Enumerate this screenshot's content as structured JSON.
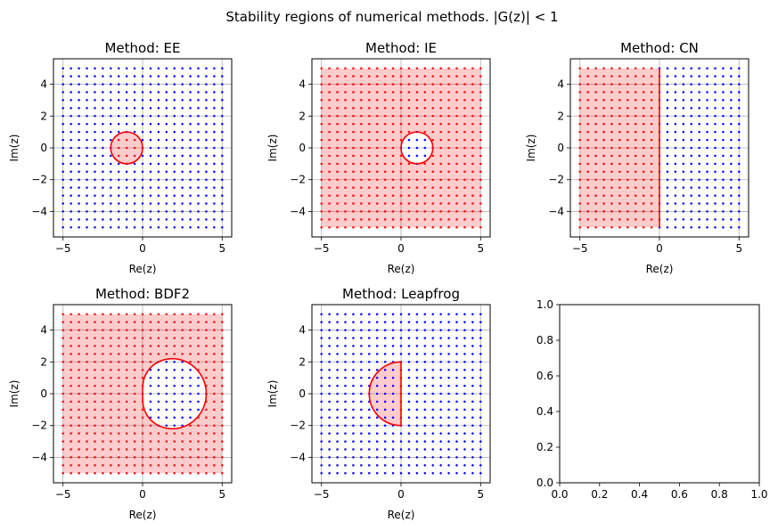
{
  "figure": {
    "suptitle": "Stability regions of numerical methods. |G(z)| < 1"
  },
  "colors": {
    "stable": "#ff0000",
    "unstable": "#0000ff",
    "fill": "#ff0000",
    "boundary": "#ff0000",
    "grid": "#b0b0b0"
  },
  "chart_data": [
    {
      "type": "scatter",
      "title": "Method: EE",
      "xlabel": "Re(z)",
      "ylabel": "Im(z)",
      "xlim": [
        -5.6,
        5.6
      ],
      "ylim": [
        -5.6,
        5.6
      ],
      "xticks": [
        -5,
        0,
        5
      ],
      "yticks": [
        -4,
        -2,
        0,
        2,
        4
      ],
      "grid": true,
      "lattice": {
        "min": -5.0,
        "max": 5.0,
        "step": 0.5
      },
      "method": "EE",
      "region": "|1+z| < 1"
    },
    {
      "type": "scatter",
      "title": "Method: IE",
      "xlabel": "Re(z)",
      "ylabel": "Im(z)",
      "xlim": [
        -5.6,
        5.6
      ],
      "ylim": [
        -5.6,
        5.6
      ],
      "xticks": [
        -5,
        0,
        5
      ],
      "yticks": [
        -4,
        -2,
        0,
        2,
        4
      ],
      "grid": true,
      "lattice": {
        "min": -5.0,
        "max": 5.0,
        "step": 0.5
      },
      "method": "IE",
      "region": "|1-z| > 1"
    },
    {
      "type": "scatter",
      "title": "Method: CN",
      "xlabel": "Re(z)",
      "ylabel": "Im(z)",
      "xlim": [
        -5.6,
        5.6
      ],
      "ylim": [
        -5.6,
        5.6
      ],
      "xticks": [
        -5,
        0,
        5
      ],
      "yticks": [
        -4,
        -2,
        0,
        2,
        4
      ],
      "grid": true,
      "lattice": {
        "min": -5.0,
        "max": 5.0,
        "step": 0.5
      },
      "method": "CN",
      "region": "Re(z) < 0"
    },
    {
      "type": "scatter",
      "title": "Method: BDF2",
      "xlabel": "Re(z)",
      "ylabel": "Im(z)",
      "xlim": [
        -5.6,
        5.6
      ],
      "ylim": [
        -5.6,
        5.6
      ],
      "xticks": [
        -5,
        0,
        5
      ],
      "yticks": [
        -4,
        -2,
        0,
        2,
        4
      ],
      "grid": true,
      "lattice": {
        "min": -5.0,
        "max": 5.0,
        "step": 0.5
      },
      "method": "BDF2",
      "region": "outside BDF2 boundary locus"
    },
    {
      "type": "scatter",
      "title": "Method: Leapfrog",
      "xlabel": "Re(z)",
      "ylabel": "Im(z)",
      "xlim": [
        -5.6,
        5.6
      ],
      "ylim": [
        -5.6,
        5.6
      ],
      "xticks": [
        -5,
        0,
        5
      ],
      "yticks": [
        -4,
        -2,
        0,
        2,
        4
      ],
      "grid": true,
      "lattice": {
        "min": -5.0,
        "max": 5.0,
        "step": 0.5
      },
      "method": "Leapfrog",
      "region": "left half-disk |z| < 2, Re(z) <= 0"
    },
    {
      "type": "line",
      "title": "",
      "xlabel": "",
      "ylabel": "",
      "xlim": [
        0.0,
        1.0
      ],
      "ylim": [
        0.0,
        1.0
      ],
      "xticks": [
        0.0,
        0.2,
        0.4,
        0.6,
        0.8,
        1.0
      ],
      "yticks": [
        0.0,
        0.2,
        0.4,
        0.6,
        0.8,
        1.0
      ],
      "grid": false,
      "series": []
    }
  ]
}
